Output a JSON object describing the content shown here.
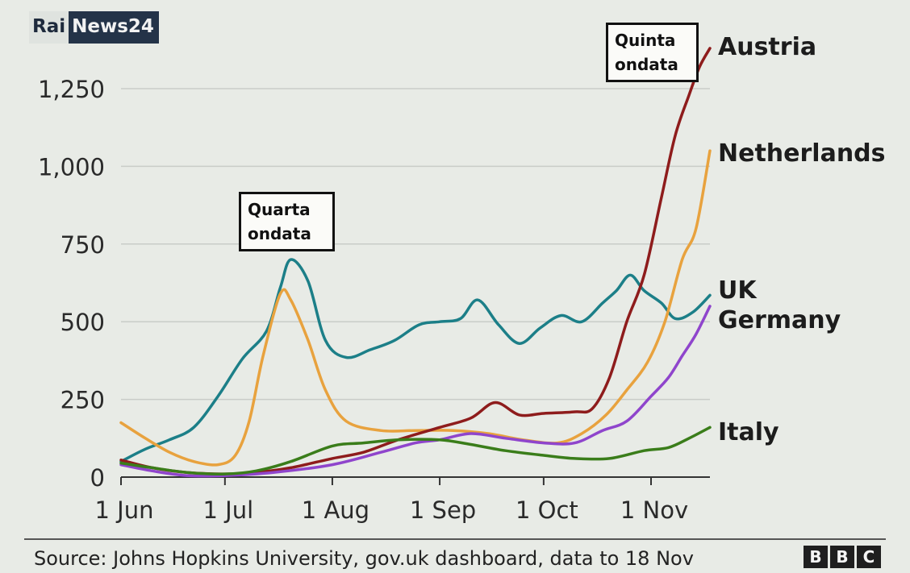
{
  "logo": {
    "left": "Rai",
    "right": "News24"
  },
  "annotations": {
    "quarta": [
      "Quarta",
      "ondata"
    ],
    "quinta": [
      "Quinta",
      "ondata"
    ]
  },
  "footer": {
    "source": "Source: Johns Hopkins University, gov.uk dashboard, data to 18 Nov",
    "brand_letters": [
      "B",
      "B",
      "C"
    ]
  },
  "chart_data": {
    "type": "line",
    "title": "",
    "xlabel": "",
    "ylabel": "",
    "ylim": [
      0,
      1400
    ],
    "xlim": [
      "2021-06-01",
      "2021-11-18"
    ],
    "yticks": [
      0,
      250,
      500,
      750,
      1000,
      1250
    ],
    "ytick_labels": [
      "0",
      "250",
      "500",
      "750",
      "1,000",
      "1,250"
    ],
    "xticks": [
      {
        "date": "2021-06-01",
        "label": "1 Jun"
      },
      {
        "date": "2021-07-01",
        "label": "1 Jul"
      },
      {
        "date": "2021-08-01",
        "label": "1 Aug"
      },
      {
        "date": "2021-09-01",
        "label": "1 Sep"
      },
      {
        "date": "2021-10-01",
        "label": "1 Oct"
      },
      {
        "date": "2021-11-01",
        "label": "1 Nov"
      }
    ],
    "grid": "horizontal",
    "legend": "direct labels at right end of lines",
    "series": [
      {
        "name": "UK",
        "color": "#1c7f88",
        "x": [
          "2021-06-01",
          "2021-06-08",
          "2021-06-15",
          "2021-06-22",
          "2021-06-29",
          "2021-07-06",
          "2021-07-13",
          "2021-07-17",
          "2021-07-20",
          "2021-07-25",
          "2021-07-30",
          "2021-08-05",
          "2021-08-12",
          "2021-08-19",
          "2021-08-26",
          "2021-09-01",
          "2021-09-07",
          "2021-09-12",
          "2021-09-18",
          "2021-09-24",
          "2021-09-30",
          "2021-10-06",
          "2021-10-12",
          "2021-10-18",
          "2021-10-22",
          "2021-10-26",
          "2021-10-30",
          "2021-11-04",
          "2021-11-08",
          "2021-11-13",
          "2021-11-18"
        ],
        "values": [
          50,
          90,
          120,
          160,
          260,
          380,
          470,
          610,
          700,
          630,
          440,
          385,
          410,
          440,
          490,
          500,
          510,
          570,
          490,
          430,
          480,
          520,
          500,
          560,
          600,
          650,
          600,
          560,
          510,
          530,
          585
        ]
      },
      {
        "name": "Netherlands",
        "color": "#e8a23e",
        "x": [
          "2021-06-01",
          "2021-06-08",
          "2021-06-15",
          "2021-06-22",
          "2021-06-29",
          "2021-07-04",
          "2021-07-08",
          "2021-07-12",
          "2021-07-17",
          "2021-07-20",
          "2021-07-25",
          "2021-07-30",
          "2021-08-05",
          "2021-08-15",
          "2021-08-25",
          "2021-09-05",
          "2021-09-15",
          "2021-09-25",
          "2021-10-05",
          "2021-10-12",
          "2021-10-19",
          "2021-10-25",
          "2021-10-31",
          "2021-11-05",
          "2021-11-10",
          "2021-11-14",
          "2021-11-18"
        ],
        "values": [
          175,
          125,
          80,
          50,
          40,
          70,
          180,
          390,
          590,
          570,
          440,
          280,
          180,
          150,
          150,
          150,
          140,
          120,
          110,
          140,
          200,
          280,
          370,
          500,
          700,
          800,
          1050
        ]
      },
      {
        "name": "Austria",
        "color": "#8e1c1c",
        "x": [
          "2021-06-01",
          "2021-06-10",
          "2021-06-20",
          "2021-07-01",
          "2021-07-10",
          "2021-07-20",
          "2021-08-01",
          "2021-08-10",
          "2021-08-20",
          "2021-09-01",
          "2021-09-10",
          "2021-09-17",
          "2021-09-24",
          "2021-10-01",
          "2021-10-10",
          "2021-10-15",
          "2021-10-20",
          "2021-10-25",
          "2021-10-30",
          "2021-11-04",
          "2021-11-08",
          "2021-11-12",
          "2021-11-15",
          "2021-11-18"
        ],
        "values": [
          55,
          30,
          15,
          10,
          15,
          30,
          60,
          80,
          120,
          160,
          190,
          240,
          200,
          205,
          210,
          220,
          320,
          500,
          650,
          900,
          1100,
          1230,
          1320,
          1380
        ]
      },
      {
        "name": "Germany",
        "color": "#8f45cc",
        "x": [
          "2021-06-01",
          "2021-06-10",
          "2021-06-20",
          "2021-07-01",
          "2021-07-15",
          "2021-08-01",
          "2021-08-15",
          "2021-08-25",
          "2021-09-01",
          "2021-09-10",
          "2021-09-20",
          "2021-10-01",
          "2021-10-10",
          "2021-10-18",
          "2021-10-25",
          "2021-11-01",
          "2021-11-06",
          "2021-11-10",
          "2021-11-14",
          "2021-11-18"
        ],
        "values": [
          40,
          20,
          5,
          5,
          15,
          40,
          80,
          110,
          120,
          140,
          125,
          110,
          110,
          150,
          180,
          260,
          320,
          390,
          460,
          550
        ]
      },
      {
        "name": "Italy",
        "color": "#3a7d1a",
        "x": [
          "2021-06-01",
          "2021-06-10",
          "2021-06-20",
          "2021-07-01",
          "2021-07-10",
          "2021-07-20",
          "2021-08-01",
          "2021-08-10",
          "2021-08-20",
          "2021-09-01",
          "2021-09-10",
          "2021-09-20",
          "2021-10-01",
          "2021-10-10",
          "2021-10-20",
          "2021-10-30",
          "2021-11-06",
          "2021-11-12",
          "2021-11-18"
        ],
        "values": [
          45,
          30,
          15,
          10,
          20,
          50,
          100,
          110,
          120,
          120,
          105,
          85,
          70,
          60,
          60,
          85,
          95,
          125,
          160
        ]
      }
    ],
    "end_labels": [
      {
        "series": "Austria",
        "text": "Austria"
      },
      {
        "series": "Netherlands",
        "text": "Netherlands"
      },
      {
        "series": "UK",
        "text": "UK"
      },
      {
        "series": "Germany",
        "text": "Germany"
      },
      {
        "series": "Italy",
        "text": "Italy"
      }
    ]
  }
}
